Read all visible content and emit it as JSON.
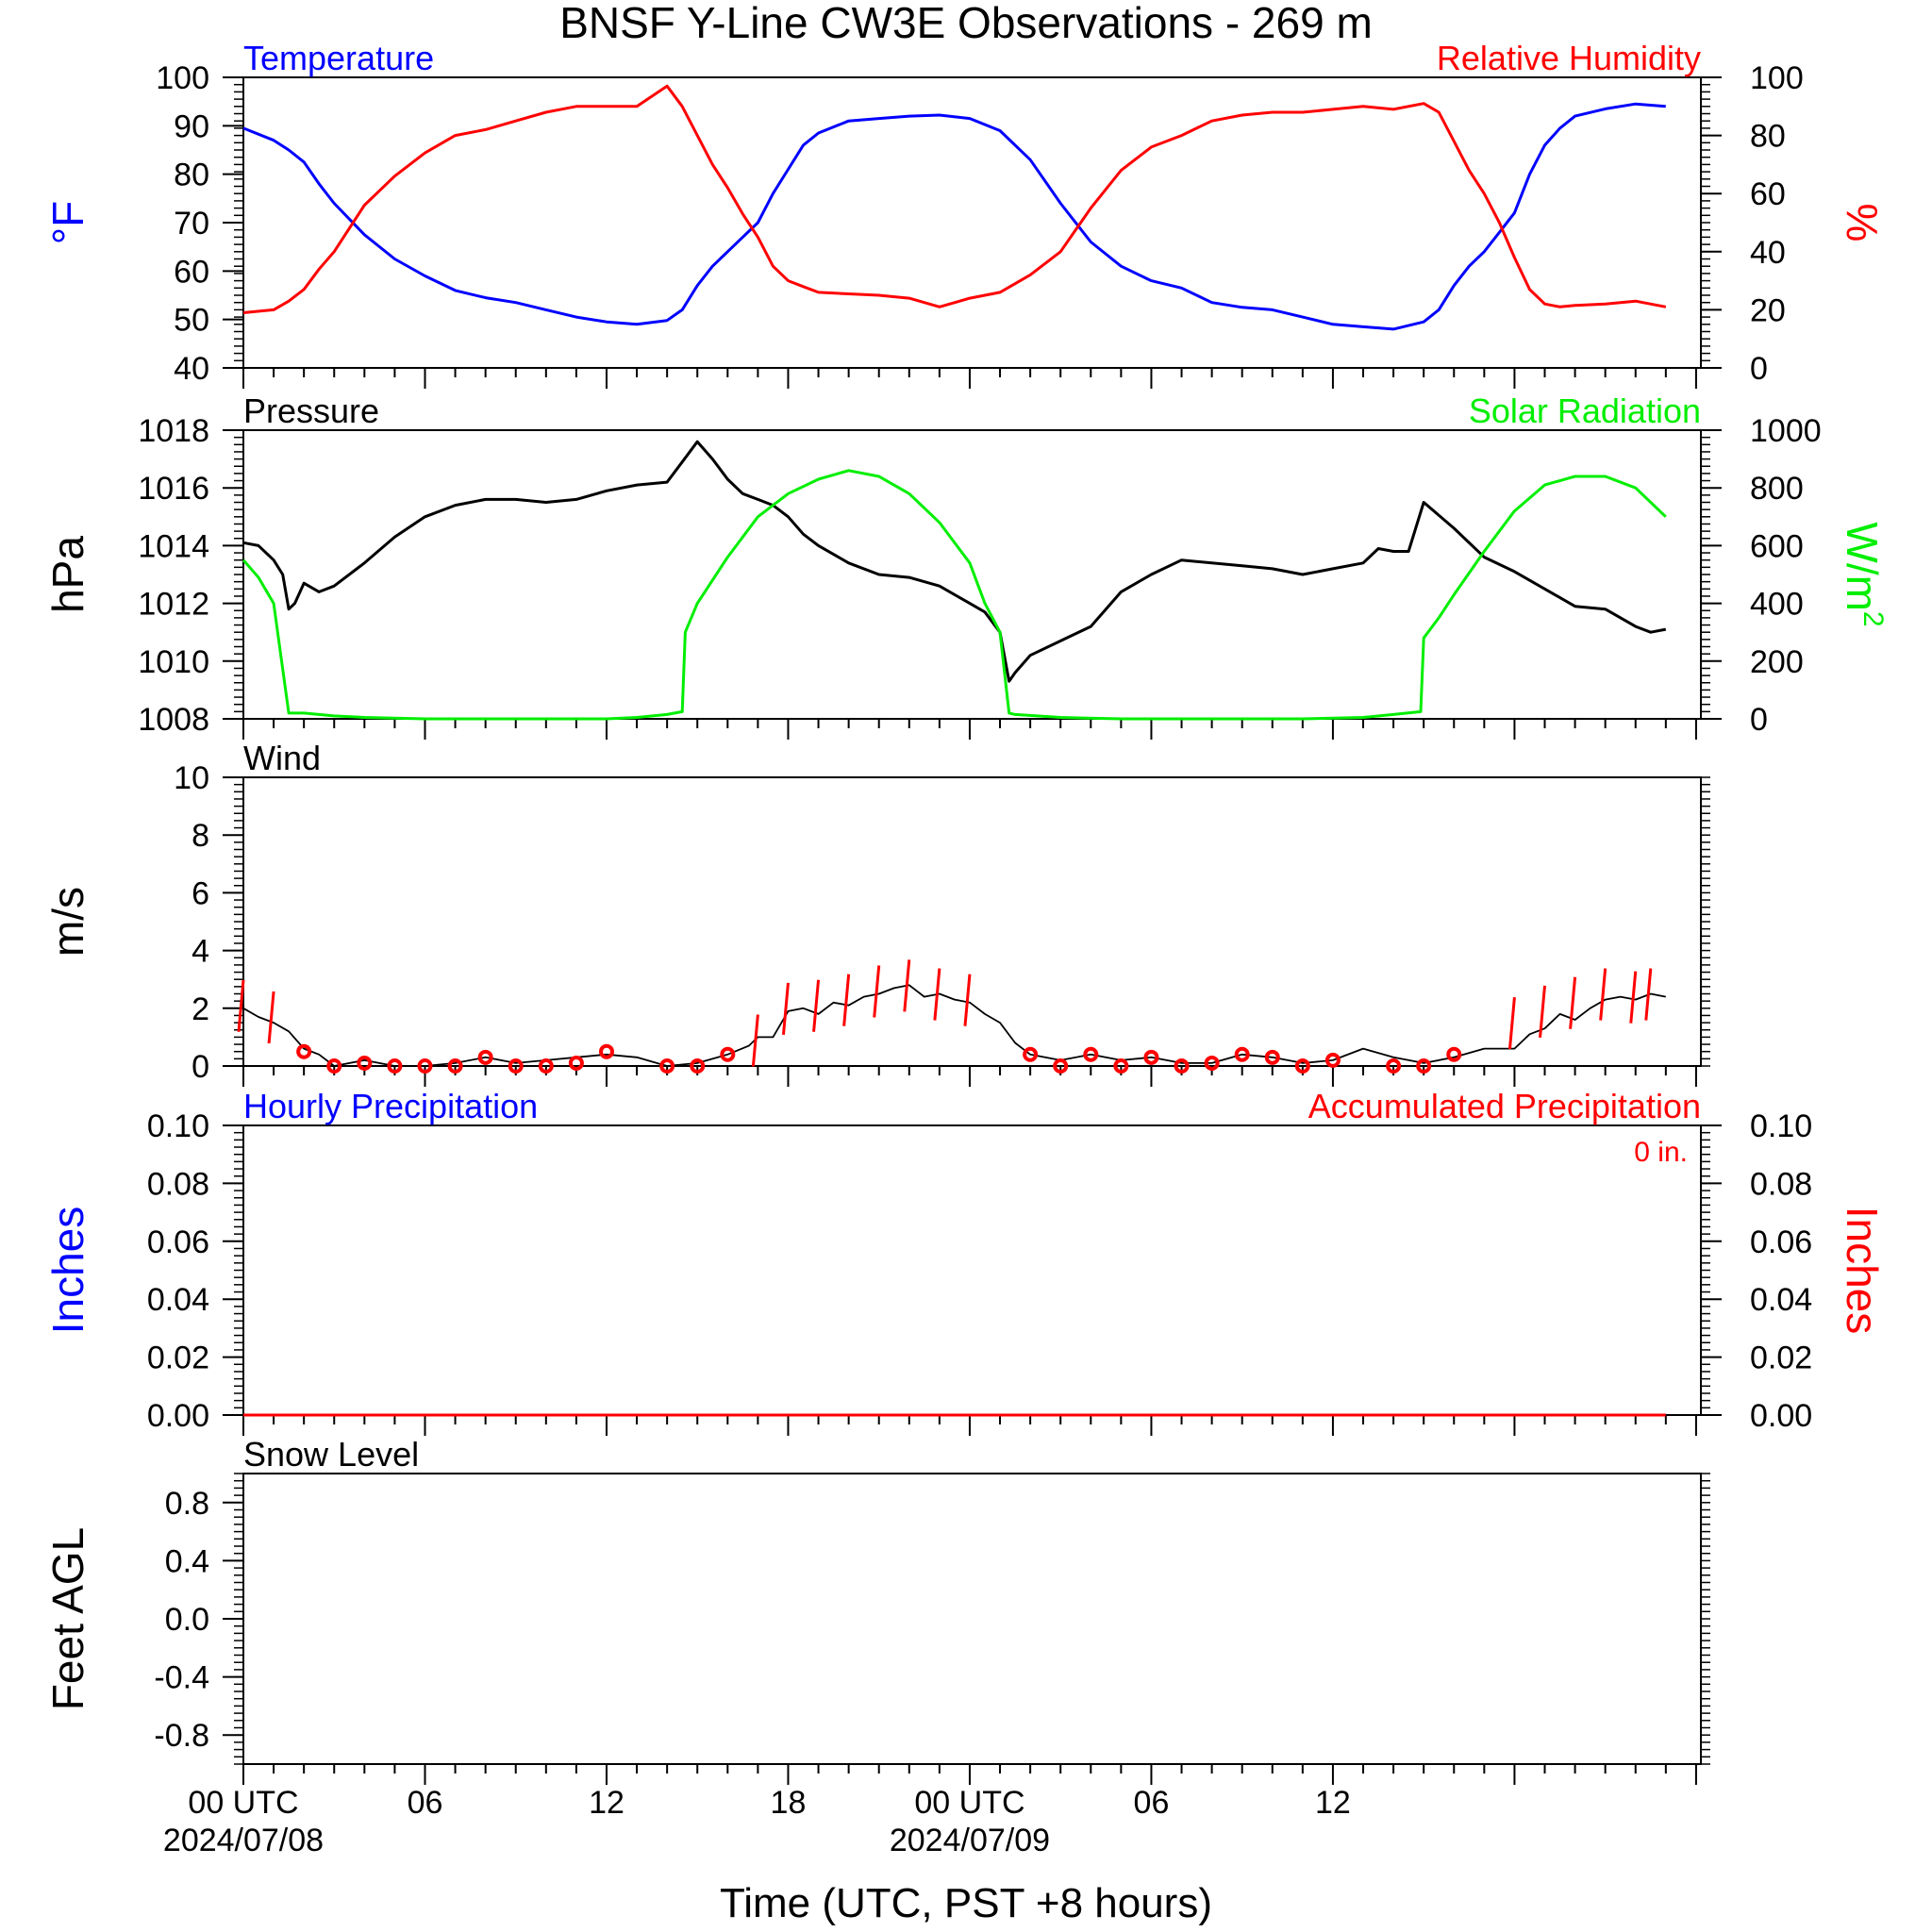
{
  "title": "BNSF Y-Line CW3E Observations - 269 m",
  "xaxis": {
    "title": "Time (UTC, PST +8 hours)",
    "range_hours": [
      0,
      49
    ],
    "ticks": [
      {
        "hour": 0,
        "label": "00 UTC",
        "date": "2024/07/08"
      },
      {
        "hour": 6,
        "label": "06",
        "date": ""
      },
      {
        "hour": 12,
        "label": "12",
        "date": ""
      },
      {
        "hour": 18,
        "label": "18",
        "date": ""
      },
      {
        "hour": 24,
        "label": "00 UTC",
        "date": "2024/07/09"
      },
      {
        "hour": 30,
        "label": "06",
        "date": ""
      },
      {
        "hour": 36,
        "label": "12",
        "date": ""
      },
      {
        "hour": 42,
        "label": "",
        "date": ""
      },
      {
        "hour": 48,
        "label": "",
        "date": ""
      }
    ]
  },
  "colors": {
    "temperature": "#0000ff",
    "humidity": "#ff0000",
    "pressure": "#000000",
    "solar": "#00ee00",
    "wind_barb": "#ff0000",
    "calm_circle": "#ff0000",
    "hourly_precip": "#0000ff",
    "accum_precip": "#ff0000",
    "axis": "#000000"
  },
  "chart_data": [
    {
      "type": "line",
      "panel": "temperature-humidity",
      "left_title": "Temperature",
      "right_title": "Relative Humidity",
      "ylabel_left": "°F",
      "ylabel_right": "%",
      "ylim_left": [
        40,
        100
      ],
      "ylim_right": [
        0,
        100
      ],
      "yticks_left": [
        "40",
        "50",
        "60",
        "70",
        "80",
        "90",
        "100"
      ],
      "yticks_right": [
        "0",
        "20",
        "40",
        "60",
        "80",
        "100"
      ],
      "series": [
        {
          "name": "Temperature",
          "axis": "left",
          "x": [
            0,
            1,
            1.5,
            2,
            2.5,
            3,
            4,
            5,
            6,
            7,
            8,
            9,
            10,
            11,
            12,
            13,
            14,
            14.5,
            15,
            15.5,
            16,
            16.5,
            17,
            17.5,
            18,
            18.5,
            19,
            20,
            21,
            22,
            23,
            24,
            25,
            26,
            27,
            28,
            29,
            30,
            31,
            32,
            33,
            34,
            35,
            36,
            37,
            38,
            39,
            39.5,
            40,
            40.5,
            41,
            41.5,
            42,
            42.5,
            43,
            43.5,
            44,
            45,
            46,
            47
          ],
          "y": [
            89.5,
            87,
            85,
            82.5,
            78,
            74,
            67.5,
            62.5,
            59,
            56,
            54.5,
            53.5,
            52,
            50.5,
            49.5,
            49,
            49.8,
            52,
            57,
            61,
            64,
            67,
            70,
            76,
            81,
            86,
            88.5,
            91,
            91.5,
            92,
            92.2,
            91.5,
            89,
            83,
            74,
            66,
            61,
            58,
            56.5,
            53.5,
            52.5,
            52,
            50.5,
            49,
            48.5,
            48,
            49.5,
            52,
            57,
            61,
            64,
            68,
            72,
            80,
            86,
            89.5,
            92,
            93.5,
            94.5,
            94
          ]
        },
        {
          "name": "Relative Humidity",
          "axis": "right",
          "x": [
            0,
            1,
            1.5,
            2,
            2.5,
            3,
            4,
            5,
            6,
            7,
            8,
            9,
            10,
            11,
            12,
            13,
            14,
            14.5,
            15,
            15.5,
            16,
            16.5,
            17,
            17.5,
            18,
            18.5,
            19,
            20,
            21,
            22,
            23,
            24,
            25,
            26,
            27,
            28,
            29,
            30,
            31,
            32,
            33,
            34,
            35,
            36,
            37,
            38,
            39,
            39.5,
            40,
            40.5,
            41,
            41.5,
            42,
            42.5,
            43,
            43.5,
            44,
            45,
            46,
            47
          ],
          "y": [
            19,
            20,
            23,
            27,
            34,
            40,
            56,
            66,
            74,
            80,
            82,
            85,
            88,
            90,
            90,
            90,
            97,
            90,
            80,
            70,
            62,
            53,
            45,
            35,
            30,
            28,
            26,
            25.5,
            25,
            24,
            21,
            24,
            26,
            32,
            40,
            55,
            68,
            76,
            80,
            85,
            87,
            88,
            88,
            89,
            90,
            89,
            91,
            88,
            78,
            68,
            60,
            50,
            38,
            27,
            22,
            21,
            21.5,
            22,
            23,
            21
          ]
        }
      ]
    },
    {
      "type": "line",
      "panel": "pressure-solar",
      "left_title": "Pressure",
      "right_title": "Solar Radiation",
      "ylabel_left": "hPa",
      "ylabel_right_base": "W/m",
      "ylabel_right_sup": "2",
      "ylim_left": [
        1008,
        1018
      ],
      "ylim_right": [
        0,
        1000
      ],
      "yticks_left": [
        "1008",
        "1010",
        "1012",
        "1014",
        "1016",
        "1018"
      ],
      "yticks_right": [
        "0",
        "200",
        "400",
        "600",
        "800",
        "1000"
      ],
      "series": [
        {
          "name": "Pressure",
          "axis": "left",
          "x": [
            0,
            0.5,
            1,
            1.3,
            1.5,
            1.7,
            2,
            2.5,
            3,
            4,
            5,
            6,
            7,
            8,
            9,
            10,
            11,
            12,
            13,
            14,
            14.5,
            15,
            15.5,
            16,
            16.5,
            17,
            17.5,
            18,
            18.5,
            19,
            20,
            21,
            22,
            23,
            24,
            24.5,
            25,
            25.3,
            25.5,
            26,
            27,
            28,
            29,
            30,
            31,
            32,
            33,
            34,
            35,
            36,
            37,
            37.5,
            38,
            38.5,
            39,
            40,
            41,
            42,
            43,
            44,
            45,
            46,
            46.5,
            47
          ],
          "y": [
            1014.1,
            1014,
            1013.5,
            1013,
            1011.8,
            1012,
            1012.7,
            1012.4,
            1012.6,
            1013.4,
            1014.3,
            1015.0,
            1015.4,
            1015.6,
            1015.6,
            1015.5,
            1015.6,
            1015.9,
            1016.1,
            1016.2,
            1016.9,
            1017.6,
            1017.0,
            1016.3,
            1015.8,
            1015.6,
            1015.4,
            1015.0,
            1014.4,
            1014.0,
            1013.4,
            1013.0,
            1012.9,
            1012.6,
            1012.0,
            1011.7,
            1011.0,
            1009.3,
            1009.6,
            1010.2,
            1010.7,
            1011.2,
            1012.4,
            1013.0,
            1013.5,
            1013.4,
            1013.3,
            1013.2,
            1013.0,
            1013.2,
            1013.4,
            1013.9,
            1013.8,
            1013.8,
            1015.5,
            1014.6,
            1013.6,
            1013.1,
            1012.5,
            1011.9,
            1011.8,
            1011.2,
            1011.0,
            1011.1
          ]
        },
        {
          "name": "Solar Radiation",
          "axis": "right",
          "x": [
            0,
            0.5,
            1,
            1.5,
            2,
            3,
            4,
            6,
            8,
            10,
            12,
            13,
            14,
            14.5,
            14.6,
            15,
            16,
            17,
            18,
            19,
            20,
            21,
            22,
            23,
            24,
            24.5,
            25,
            25.3,
            25.5,
            27,
            29,
            31,
            33,
            35,
            37,
            38,
            38.9,
            39,
            39.5,
            40,
            41,
            42,
            43,
            44,
            45,
            46,
            47
          ],
          "y": [
            550,
            490,
            400,
            20,
            20,
            10,
            5,
            0,
            0,
            0,
            0,
            5,
            15,
            25,
            300,
            400,
            560,
            700,
            780,
            830,
            860,
            840,
            780,
            680,
            540,
            400,
            300,
            20,
            15,
            5,
            0,
            0,
            0,
            0,
            5,
            15,
            25,
            280,
            350,
            430,
            580,
            720,
            810,
            840,
            840,
            800,
            700
          ]
        }
      ]
    },
    {
      "type": "line",
      "panel": "wind",
      "left_title": "Wind",
      "ylabel_left": "m/s",
      "ylim_left": [
        0,
        10
      ],
      "yticks_left": [
        "0",
        "2",
        "4",
        "6",
        "8",
        "10"
      ],
      "series": [
        {
          "name": "Wind",
          "axis": "left",
          "x": [
            0,
            0.5,
            1,
            1.5,
            2,
            2.5,
            3,
            4,
            5,
            6,
            7,
            8,
            9,
            10,
            11,
            12,
            13,
            14,
            15,
            16,
            16.7,
            17,
            17.5,
            18,
            18.5,
            19,
            19.5,
            20,
            20.5,
            21,
            21.5,
            22,
            22.5,
            23,
            23.5,
            24,
            24.5,
            25,
            25.5,
            26,
            27,
            28,
            29,
            30,
            31,
            32,
            33,
            34,
            35,
            36,
            37,
            38,
            39,
            40,
            41,
            42,
            42.5,
            43,
            43.5,
            44,
            44.5,
            45,
            45.5,
            46,
            46.5,
            47
          ],
          "y": [
            2.0,
            1.7,
            1.5,
            1.2,
            0.6,
            0.4,
            0.0,
            0.2,
            0.0,
            0.0,
            0.1,
            0.3,
            0.1,
            0.2,
            0.3,
            0.4,
            0.3,
            0.0,
            0.1,
            0.4,
            0.7,
            1.0,
            1.0,
            1.9,
            2.0,
            1.8,
            2.2,
            2.1,
            2.4,
            2.5,
            2.7,
            2.8,
            2.4,
            2.5,
            2.3,
            2.2,
            1.8,
            1.5,
            0.8,
            0.4,
            0.2,
            0.4,
            0.2,
            0.3,
            0.1,
            0.1,
            0.4,
            0.3,
            0.1,
            0.2,
            0.6,
            0.3,
            0.1,
            0.3,
            0.6,
            0.6,
            1.1,
            1.3,
            1.8,
            1.6,
            2.0,
            2.3,
            2.4,
            2.3,
            2.5,
            2.4
          ]
        },
        {
          "name": "Calm",
          "axis": "left",
          "x": [
            2,
            3,
            4,
            5,
            6,
            7,
            8,
            9,
            10,
            11,
            12,
            14,
            15,
            16,
            26,
            27,
            28,
            29,
            30,
            31,
            32,
            33,
            34,
            35,
            36,
            38,
            39,
            40
          ],
          "y": [
            0.5,
            0.0,
            0.1,
            0.0,
            0.0,
            0.0,
            0.3,
            0.0,
            0.0,
            0.1,
            0.5,
            0.0,
            0.0,
            0.4,
            0.4,
            0.0,
            0.4,
            0.0,
            0.3,
            0.0,
            0.1,
            0.4,
            0.3,
            0.0,
            0.2,
            0.0,
            0.0,
            0.4
          ]
        },
        {
          "name": "Barb",
          "axis": "left",
          "x": [
            0,
            1,
            17,
            18,
            19,
            20,
            21,
            22,
            23,
            24,
            42,
            43,
            44,
            45,
            46,
            46.5
          ],
          "y": [
            2.0,
            1.6,
            0.8,
            1.9,
            2.0,
            2.2,
            2.5,
            2.7,
            2.4,
            2.2,
            1.4,
            1.8,
            2.1,
            2.4,
            2.3,
            2.4
          ]
        }
      ]
    },
    {
      "type": "line",
      "panel": "precipitation",
      "left_title": "Hourly Precipitation",
      "right_title": "Accumulated Precipitation",
      "accum_total": "0 in.",
      "ylabel_left": "Inches",
      "ylabel_right": "Inches",
      "ylim_left": [
        0,
        0.1
      ],
      "ylim_right": [
        0,
        0.1
      ],
      "yticks_left": [
        "0.00",
        "0.02",
        "0.04",
        "0.06",
        "0.08",
        "0.10"
      ],
      "yticks_right": [
        "0.00",
        "0.02",
        "0.04",
        "0.06",
        "0.08",
        "0.10"
      ],
      "series": [
        {
          "name": "Hourly Precipitation",
          "axis": "left",
          "x": [
            0,
            47
          ],
          "y": [
            0,
            0
          ]
        },
        {
          "name": "Accumulated Precipitation",
          "axis": "right",
          "x": [
            0,
            47
          ],
          "y": [
            0,
            0
          ]
        }
      ]
    },
    {
      "type": "line",
      "panel": "snow-level",
      "left_title": "Snow Level",
      "ylabel_left": "Feet AGL",
      "ylim_left": [
        -1,
        1
      ],
      "yticks_left": [
        "-0.8",
        "-0.4",
        "0.0",
        "0.4",
        "0.8"
      ],
      "series": []
    }
  ]
}
